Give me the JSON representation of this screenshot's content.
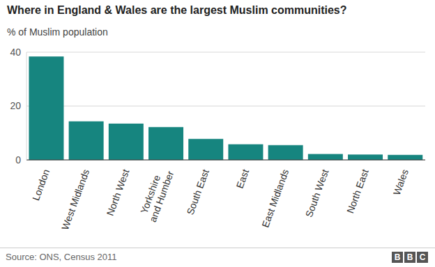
{
  "chart_data": {
    "type": "bar",
    "title": "Where in England & Wales are the largest Muslim communities?",
    "subtitle": "% of Muslim population",
    "source": "Source: ONS, Census 2011",
    "logo": "BBC",
    "categories": [
      "London",
      "West Midlands",
      "North West",
      "Yorkshire and Humber",
      "South East",
      "East",
      "East Midlands",
      "South West",
      "North East",
      "Wales"
    ],
    "values": [
      38.4,
      14.3,
      13.5,
      12.2,
      7.8,
      5.8,
      5.5,
      2.2,
      2.0,
      1.9
    ],
    "color": "#16857f",
    "ylim": [
      0,
      40
    ],
    "yticks": [
      0,
      20,
      40
    ],
    "grid": true
  }
}
